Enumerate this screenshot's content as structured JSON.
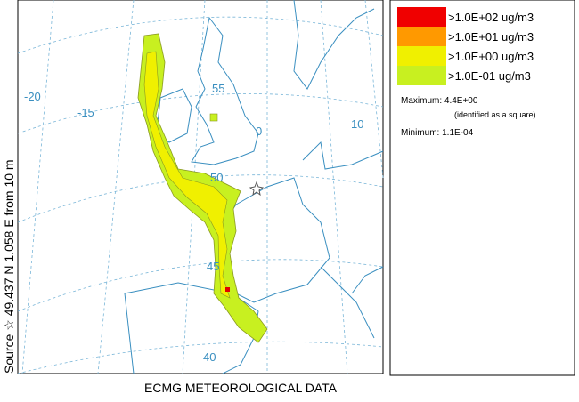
{
  "map": {
    "side_label": "Source ☆ 49.437 N 1.058 E from 10 m",
    "bottom_label": "ECMG METEOROLOGICAL DATA",
    "grid_labels": [
      "-20",
      "-15",
      "55",
      "0",
      "10",
      "50",
      "45",
      "40"
    ]
  },
  "legend": {
    "top_label": "(...)",
    "entries": [
      ">1.0E+02 ug/m3",
      ">1.0E+01 ug/m3",
      ">1.0E+00 ug/m3",
      ">1.0E-01 ug/m3"
    ],
    "maximum": "Maximum: 4.4E+00",
    "maximum_note": "(identified as a square)",
    "minimum": "Minimum: 1.1E-04"
  }
}
